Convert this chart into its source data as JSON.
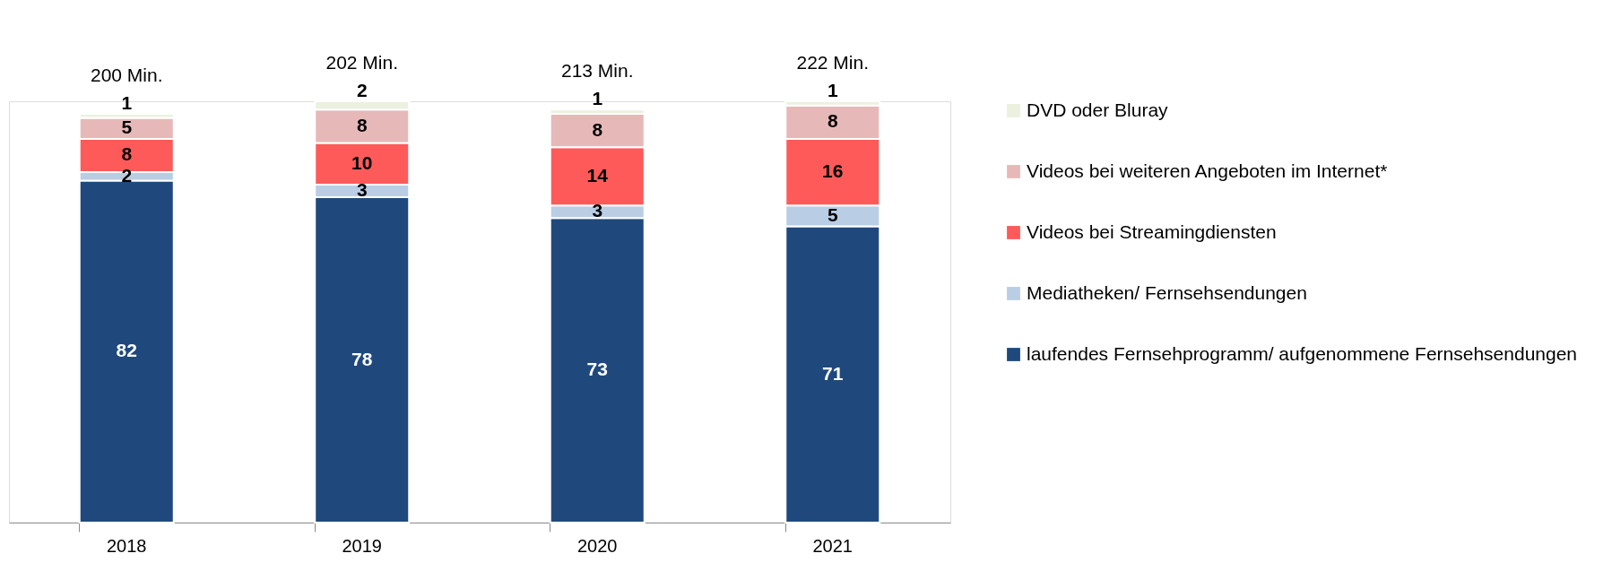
{
  "chart_data": {
    "type": "bar",
    "stacked": true,
    "categories": [
      "2018",
      "2019",
      "2020",
      "2021"
    ],
    "series": [
      {
        "name": "laufendes Fernsehprogramm/ aufgenommene Fernsehsendungen",
        "color": "#1f497d",
        "values": [
          82,
          78,
          73,
          71
        ]
      },
      {
        "name": "Mediatheken/ Fernsehsendungen",
        "color": "#b9cde5",
        "values": [
          2,
          3,
          3,
          5
        ]
      },
      {
        "name": "Videos bei Streamingdiensten",
        "color": "#ff5a5a",
        "values": [
          8,
          10,
          14,
          16
        ]
      },
      {
        "name": "Videos bei weiteren Angeboten im Internet*",
        "color": "#e6b9b8",
        "values": [
          5,
          8,
          8,
          8
        ]
      },
      {
        "name": "DVD oder Bluray",
        "color": "#ebf1de",
        "values": [
          1,
          2,
          1,
          1
        ]
      }
    ],
    "annotations": [
      "200 Min.",
      "202 Min.",
      "213 Min.",
      "222 Min."
    ],
    "data_labels": true,
    "legend": "right",
    "grid": false
  }
}
